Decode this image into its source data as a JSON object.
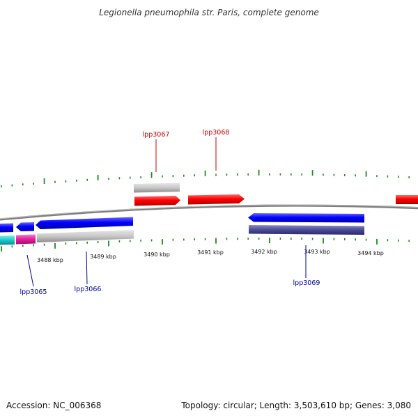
{
  "title": "Legionella pneumophila str. Paris, complete genome",
  "footer": {
    "accession": "Accession: NC_006368",
    "summary": "Topology: circular; Length: 3,503,610 bp; Genes: 3,080"
  },
  "colors": {
    "forward": "#ff0000",
    "reverse": "#0000ff",
    "backbone": "#808080",
    "ticks": "#1a8c1a",
    "forward_label": "#cc0000",
    "reverse_label": "#000099",
    "cds_gray": "#c8c8c8",
    "cds_navy": "#4a4a99",
    "cyan": "#19c8c8",
    "magenta": "#e619a0"
  },
  "axis": {
    "ticks": [
      {
        "label": "3488 kbp",
        "kbp": 3488
      },
      {
        "label": "3489 kbp",
        "kbp": 3489
      },
      {
        "label": "3490 kbp",
        "kbp": 3490
      },
      {
        "label": "3491 kbp",
        "kbp": 3491
      },
      {
        "label": "3492 kbp",
        "kbp": 3492
      },
      {
        "label": "3493 kbp",
        "kbp": 3493
      },
      {
        "label": "3494 kbp",
        "kbp": 3494
      }
    ]
  },
  "genes": [
    {
      "name": "lpp3065",
      "strand": "reverse"
    },
    {
      "name": "lpp3066",
      "strand": "reverse"
    },
    {
      "name": "lpp3067",
      "strand": "forward"
    },
    {
      "name": "lpp3068",
      "strand": "forward"
    },
    {
      "name": "lpp3069",
      "strand": "reverse"
    }
  ]
}
